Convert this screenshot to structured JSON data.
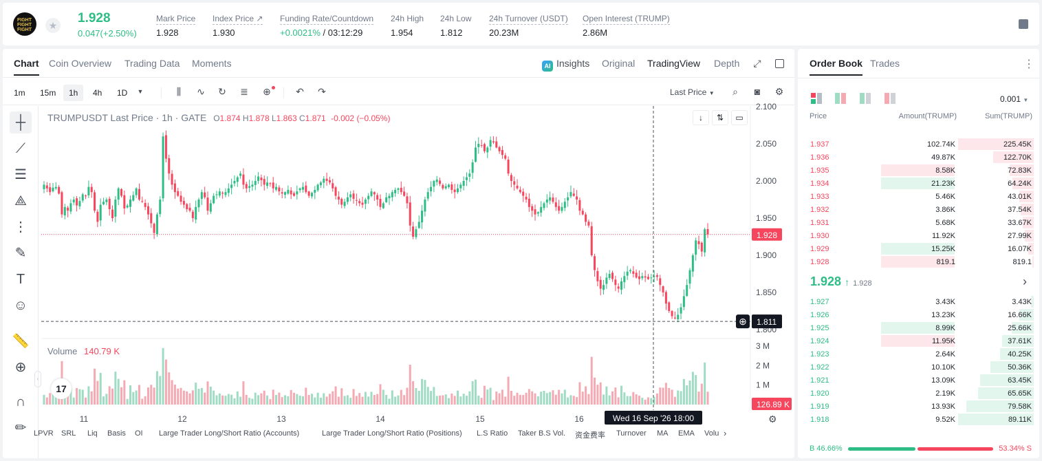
{
  "header": {
    "last_price": "1.928",
    "price_change": "0.047(+2.50%)",
    "logo_text": [
      "FIGHT",
      "FIGHT",
      "FIGHT"
    ],
    "stats": [
      {
        "label": "Mark Price",
        "value": "1.928"
      },
      {
        "label": "Index Price ↗",
        "value": "1.930"
      },
      {
        "label": "Funding Rate/Countdown",
        "value_green": "+0.0021%",
        "value": " / 03:12:29"
      },
      {
        "label": "24h High",
        "value": "1.954"
      },
      {
        "label": "24h Low",
        "value": "1.812"
      },
      {
        "label": "24h Turnover (USDT)",
        "value": "20.23M"
      },
      {
        "label": "Open Interest (TRUMP)",
        "value": "2.86M"
      }
    ]
  },
  "chart_tabs": [
    "Chart",
    "Coin Overview",
    "Trading Data",
    "Moments"
  ],
  "view_tabs": {
    "insights": "Insights",
    "original": "Original",
    "tradingview": "TradingView",
    "depth": "Depth"
  },
  "timeframes": [
    "1m",
    "15m",
    "1h",
    "4h",
    "1D"
  ],
  "price_type": "Last Price",
  "chart_header": {
    "symbol": "TRUMPUSDT Last Price · 1h · GATE",
    "o_label": "O",
    "o": "1.874",
    "h_label": "H",
    "h": "1.878",
    "l_label": "L",
    "l": "1.863",
    "c_label": "C",
    "c": "1.871",
    "change": "-0.002 (−0.05%)"
  },
  "volume_header": {
    "label": "Volume",
    "value": "140.79 K"
  },
  "crosshair": {
    "price_label": "1.811",
    "time_label": "Wed 16 Sep '26   18:00",
    "volume_label": "126.89 K"
  },
  "current_price_label": "1.928",
  "tv_logo": "17",
  "bottom_indicators": [
    "LPVR",
    "SRL",
    "Liq",
    "Basis",
    "OI",
    "Large Trader Long/Short Ratio (Accounts)",
    "Large Trader Long/Short Ratio (Positions)",
    "L.S Ratio",
    "Taker B.S Vol.",
    "资金费率",
    "Turnover",
    "MA",
    "EMA",
    "Volu"
  ],
  "chart_data": {
    "type": "candlestick",
    "price_axis_ticks": [
      "2.100",
      "2.050",
      "2.000",
      "1.950",
      "1.900",
      "1.850",
      "1.800"
    ],
    "volume_axis_ticks": [
      "3 M",
      "2 M",
      "1 M"
    ],
    "x_ticks": [
      "11",
      "12",
      "13",
      "14",
      "15",
      "16"
    ],
    "y_range": [
      1.8,
      2.1
    ],
    "volume_range_M": [
      0,
      3
    ],
    "candles_close": [
      1.995,
      1.99,
      1.985,
      1.991,
      1.992,
      1.983,
      1.955,
      1.965,
      1.96,
      1.97,
      1.975,
      1.967,
      1.973,
      1.982,
      1.98,
      1.992,
      1.985,
      1.96,
      1.945,
      1.968,
      1.972,
      1.975,
      1.962,
      1.95,
      1.975,
      1.99,
      1.98,
      1.963,
      1.967,
      1.975,
      1.981,
      1.99,
      1.975,
      1.972,
      1.965,
      1.955,
      1.943,
      1.93,
      1.955,
      1.975,
      2.06,
      2.03,
      2.01,
      1.995,
      1.985,
      1.98,
      1.972,
      1.968,
      1.962,
      1.96,
      1.95,
      1.965,
      1.975,
      1.985,
      1.978,
      1.96,
      1.97,
      1.98,
      1.982,
      1.986,
      1.983,
      1.985,
      1.99,
      1.995,
      2.0,
      2.005,
      2.01,
      1.995,
      1.99,
      1.993,
      1.995,
      2.0,
      2.006,
      2.001,
      1.995,
      1.998,
      1.996,
      1.99,
      1.992,
      1.986,
      1.983,
      1.985,
      1.988,
      1.982,
      1.98,
      1.986,
      1.99,
      1.992,
      1.985,
      1.98,
      1.984,
      1.988,
      1.995,
      1.998,
      2.003,
      2.0,
      1.998,
      1.99,
      1.98,
      1.975,
      1.968,
      1.972,
      1.978,
      1.982,
      1.976,
      1.974,
      1.97,
      1.968,
      1.975,
      1.98,
      1.986,
      1.982,
      1.975,
      1.965,
      1.97,
      1.978,
      1.98,
      1.985,
      1.988,
      1.99,
      1.985,
      1.98,
      1.97,
      1.94,
      1.925,
      1.935,
      1.945,
      1.96,
      1.975,
      1.985,
      1.992,
      2.0,
      2.002,
      1.996,
      1.99,
      1.993,
      1.995,
      1.988,
      1.985,
      1.99,
      1.995,
      2.0,
      2.005,
      2.01,
      2.025,
      2.045,
      2.05,
      2.048,
      2.04,
      2.045,
      2.055,
      2.052,
      2.045,
      2.04,
      2.035,
      2.03,
      2.01,
      2.0,
      1.995,
      1.99,
      1.985,
      1.98,
      1.975,
      1.965,
      1.96,
      1.955,
      1.958,
      1.965,
      1.97,
      1.975,
      1.978,
      1.972,
      1.965,
      1.96,
      1.965,
      1.972,
      1.978,
      1.985,
      1.98,
      1.975,
      1.96,
      1.955,
      1.945,
      1.94,
      1.9,
      1.88,
      1.865,
      1.855,
      1.86,
      1.87,
      1.875,
      1.868,
      1.86,
      1.855,
      1.865,
      1.872,
      1.878,
      1.88,
      1.875,
      1.87,
      1.868,
      1.872,
      1.87,
      1.868,
      1.87,
      1.872,
      1.871,
      1.86,
      1.85,
      1.835,
      1.825,
      1.818,
      1.815,
      1.82,
      1.83,
      1.845,
      1.86,
      1.88,
      1.9,
      1.92,
      1.915,
      1.905,
      1.935,
      1.928
    ],
    "current_price": 1.928,
    "crosshair_price": 1.811
  },
  "orderbook": {
    "tabs": [
      "Order Book",
      "Trades"
    ],
    "precision": "0.001",
    "headers": [
      "Price",
      "Amount(TRUMP)",
      "Sum(TRUMP)"
    ],
    "asks": [
      {
        "price": "1.937",
        "amount": "102.74K",
        "sum": "225.45K",
        "sum_frac": 1.0,
        "hl": ""
      },
      {
        "price": "1.936",
        "amount": "49.87K",
        "sum": "122.70K",
        "sum_frac": 0.54,
        "hl": ""
      },
      {
        "price": "1.935",
        "amount": "8.58K",
        "sum": "72.83K",
        "sum_frac": 0.32,
        "hl": "red"
      },
      {
        "price": "1.934",
        "amount": "21.23K",
        "sum": "64.24K",
        "sum_frac": 0.28,
        "hl": "green"
      },
      {
        "price": "1.933",
        "amount": "5.46K",
        "sum": "43.01K",
        "sum_frac": 0.19,
        "hl": ""
      },
      {
        "price": "1.932",
        "amount": "3.86K",
        "sum": "37.54K",
        "sum_frac": 0.17,
        "hl": ""
      },
      {
        "price": "1.931",
        "amount": "5.68K",
        "sum": "33.67K",
        "sum_frac": 0.15,
        "hl": ""
      },
      {
        "price": "1.930",
        "amount": "11.92K",
        "sum": "27.99K",
        "sum_frac": 0.12,
        "hl": ""
      },
      {
        "price": "1.929",
        "amount": "15.25K",
        "sum": "16.07K",
        "sum_frac": 0.07,
        "hl": "green"
      },
      {
        "price": "1.928",
        "amount": "819.1",
        "sum": "819.1",
        "sum_frac": 0.004,
        "hl": "red"
      }
    ],
    "mid_price": "1.928",
    "mid_arrow": "↑",
    "mid_mark": "1.928",
    "bids": [
      {
        "price": "1.927",
        "amount": "3.43K",
        "sum": "3.43K",
        "sum_frac": 0.04,
        "hl": ""
      },
      {
        "price": "1.926",
        "amount": "13.23K",
        "sum": "16.66K",
        "sum_frac": 0.19,
        "hl": ""
      },
      {
        "price": "1.925",
        "amount": "8.99K",
        "sum": "25.66K",
        "sum_frac": 0.29,
        "hl": "green"
      },
      {
        "price": "1.924",
        "amount": "11.95K",
        "sum": "37.61K",
        "sum_frac": 0.42,
        "hl": "red"
      },
      {
        "price": "1.923",
        "amount": "2.64K",
        "sum": "40.25K",
        "sum_frac": 0.45,
        "hl": ""
      },
      {
        "price": "1.922",
        "amount": "10.10K",
        "sum": "50.36K",
        "sum_frac": 0.57,
        "hl": ""
      },
      {
        "price": "1.921",
        "amount": "13.09K",
        "sum": "63.45K",
        "sum_frac": 0.71,
        "hl": ""
      },
      {
        "price": "1.920",
        "amount": "2.19K",
        "sum": "65.65K",
        "sum_frac": 0.74,
        "hl": ""
      },
      {
        "price": "1.919",
        "amount": "13.93K",
        "sum": "79.58K",
        "sum_frac": 0.89,
        "hl": ""
      },
      {
        "price": "1.918",
        "amount": "9.52K",
        "sum": "89.11K",
        "sum_frac": 1.0,
        "hl": ""
      }
    ],
    "buy_label": "B",
    "buy_pct": "46.66%",
    "buy_frac": 0.4666,
    "sell_label": "S",
    "sell_pct": "53.34%"
  },
  "colors": {
    "up": "#2ebd85",
    "down": "#f6465d",
    "up_vol": "#9fdcc3",
    "down_vol": "#f5aab3"
  }
}
